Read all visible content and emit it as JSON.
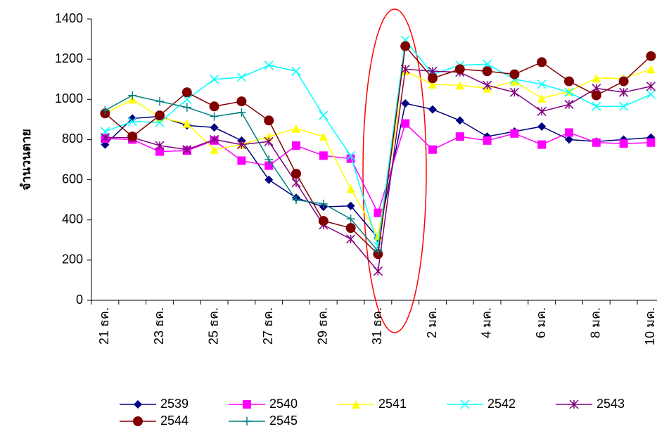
{
  "chart_data": {
    "type": "line",
    "ylabel": "จำนวนตาย",
    "categories": [
      "21 ธค.",
      null,
      "23 ธค.",
      null,
      "25 ธค.",
      null,
      "27 ธค.",
      null,
      "29 ธค.",
      null,
      "31 ธค.",
      null,
      "2 มค.",
      null,
      "4 มค.",
      null,
      "6 มค.",
      null,
      "8 มค.",
      null,
      "10 มค."
    ],
    "ylim": [
      0,
      1400
    ],
    "yticks": [
      0,
      200,
      400,
      600,
      800,
      1000,
      1200,
      1400
    ],
    "series": [
      {
        "name": "2539",
        "color": "#000080",
        "marker": "diamond",
        "values": [
          775,
          905,
          915,
          870,
          860,
          795,
          600,
          510,
          465,
          470,
          310,
          980,
          950,
          895,
          815,
          840,
          865,
          800,
          790,
          800,
          810
        ]
      },
      {
        "name": "2540",
        "color": "#ff00ff",
        "marker": "square",
        "values": [
          805,
          800,
          740,
          745,
          795,
          695,
          670,
          770,
          720,
          705,
          435,
          880,
          750,
          815,
          795,
          830,
          775,
          835,
          785,
          780,
          785
        ]
      },
      {
        "name": "2541",
        "color": "#ffff00",
        "marker": "triangle",
        "values": [
          930,
          1000,
          910,
          880,
          750,
          775,
          815,
          855,
          815,
          555,
          320,
          1140,
          1075,
          1070,
          1055,
          1090,
          1005,
          1040,
          1105,
          1105,
          1150
        ]
      },
      {
        "name": "2542",
        "color": "#00ffff",
        "marker": "x",
        "values": [
          840,
          890,
          885,
          1000,
          1100,
          1110,
          1170,
          1140,
          920,
          720,
          270,
          1295,
          1125,
          1170,
          1175,
          1100,
          1075,
          1035,
          965,
          965,
          1025
        ]
      },
      {
        "name": "2543",
        "color": "#800080",
        "marker": "star",
        "values": [
          810,
          810,
          770,
          750,
          800,
          775,
          790,
          585,
          375,
          305,
          145,
          1150,
          1140,
          1135,
          1070,
          1035,
          940,
          975,
          1055,
          1035,
          1065
        ]
      },
      {
        "name": "2544",
        "color": "#800000",
        "marker": "circle",
        "values": [
          930,
          815,
          920,
          1035,
          965,
          990,
          895,
          630,
          395,
          360,
          230,
          1265,
          1105,
          1150,
          1140,
          1125,
          1185,
          1090,
          1020,
          1090,
          1215
        ]
      },
      {
        "name": "2545",
        "color": "#008080",
        "marker": "plus",
        "values": [
          945,
          1020,
          990,
          960,
          915,
          935,
          700,
          500,
          480,
          405,
          245,
          null,
          null,
          null,
          null,
          null,
          null,
          null,
          null,
          null,
          null
        ]
      }
    ]
  }
}
